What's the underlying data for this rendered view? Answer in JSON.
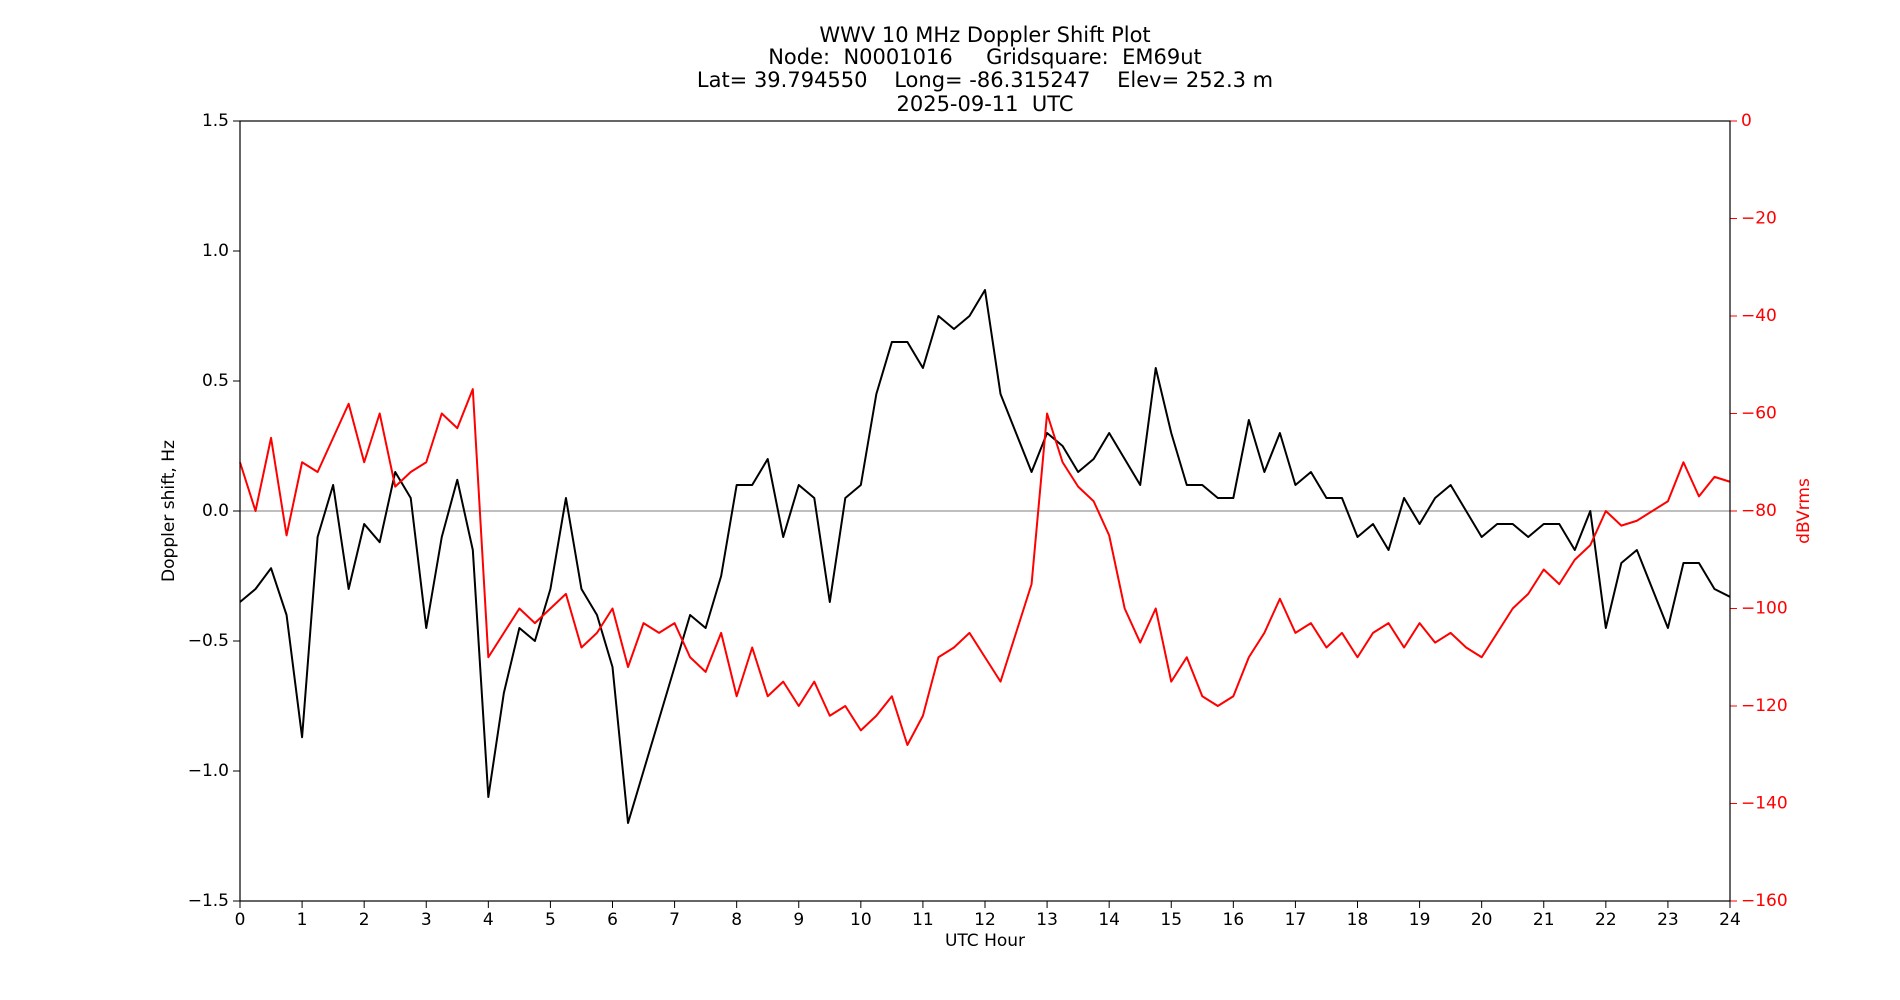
{
  "chart_data": {
    "type": "line",
    "title": [
      "WWV 10 MHz Doppler Shift Plot",
      "Node:  N0001016     Gridsquare:  EM69ut",
      "Lat= 39.794550    Long= -86.315247    Elev= 252.3 m",
      "2025-09-11  UTC"
    ],
    "xlabel": "UTC Hour",
    "ylabel": "Doppler shift, Hz",
    "y2label": "dBVrms",
    "x": [
      0,
      0.25,
      0.5,
      0.75,
      1,
      1.25,
      1.5,
      1.75,
      2,
      2.25,
      2.5,
      2.75,
      3,
      3.25,
      3.5,
      3.75,
      4,
      4.25,
      4.5,
      4.75,
      5,
      5.25,
      5.5,
      5.75,
      6,
      6.25,
      6.5,
      6.75,
      7,
      7.25,
      7.5,
      7.75,
      8,
      8.25,
      8.5,
      8.75,
      9,
      9.25,
      9.5,
      9.75,
      10,
      10.25,
      10.5,
      10.75,
      11,
      11.25,
      11.5,
      11.75,
      12,
      12.25,
      12.5,
      12.75,
      13,
      13.25,
      13.5,
      13.75,
      14,
      14.25,
      14.5,
      14.75,
      15,
      15.25,
      15.5,
      15.75,
      16,
      16.25,
      16.5,
      16.75,
      17,
      17.25,
      17.5,
      17.75,
      18,
      18.25,
      18.5,
      18.75,
      19,
      19.25,
      19.5,
      19.75,
      20,
      20.25,
      20.5,
      20.75,
      21,
      21.25,
      21.5,
      21.75,
      22,
      22.25,
      22.5,
      22.75,
      23,
      23.25,
      23.5,
      23.75,
      24
    ],
    "series": [
      {
        "color": "#000000",
        "values": [
          -0.35,
          -0.3,
          -0.22,
          -0.4,
          -0.87,
          -0.1,
          0.1,
          -0.3,
          -0.05,
          -0.12,
          0.15,
          0.05,
          -0.45,
          -0.1,
          0.12,
          -0.15,
          -1.1,
          -0.7,
          -0.45,
          -0.5,
          -0.3,
          0.05,
          -0.3,
          -0.4,
          -0.6,
          -1.2,
          -1.0,
          -0.8,
          -0.6,
          -0.4,
          -0.45,
          -0.25,
          0.1,
          0.1,
          0.2,
          -0.1,
          0.1,
          0.05,
          -0.35,
          0.05,
          0.1,
          0.45,
          0.65,
          0.65,
          0.55,
          0.75,
          0.7,
          0.75,
          0.85,
          0.45,
          0.3,
          0.15,
          0.3,
          0.25,
          0.15,
          0.2,
          0.3,
          0.2,
          0.1,
          0.55,
          0.3,
          0.1,
          0.1,
          0.05,
          0.05,
          0.35,
          0.15,
          0.3,
          0.1,
          0.15,
          0.05,
          0.05,
          -0.1,
          -0.05,
          -0.15,
          0.05,
          -0.05,
          0.05,
          0.1,
          0.0,
          -0.1,
          -0.05,
          -0.05,
          -0.1,
          -0.05,
          -0.05,
          -0.15,
          0.0,
          -0.45,
          -0.2,
          -0.15,
          -0.3,
          -0.45,
          -0.2,
          -0.2,
          -0.3,
          -0.33
        ]
      },
      {
        "color": "#ff0000",
        "axis": "y2",
        "values": [
          -70,
          -80,
          -65,
          -85,
          -70,
          -72,
          -65,
          -58,
          -70,
          -60,
          -75,
          -72,
          -70,
          -60,
          -63,
          -55,
          -110,
          -105,
          -100,
          -103,
          -100,
          -97,
          -108,
          -105,
          -100,
          -112,
          -103,
          -105,
          -103,
          -110,
          -113,
          -105,
          -118,
          -108,
          -118,
          -115,
          -120,
          -115,
          -122,
          -120,
          -125,
          -122,
          -118,
          -128,
          -122,
          -110,
          -108,
          -105,
          -110,
          -115,
          -105,
          -95,
          -60,
          -70,
          -75,
          -78,
          -85,
          -100,
          -107,
          -100,
          -115,
          -110,
          -118,
          -120,
          -118,
          -110,
          -105,
          -98,
          -105,
          -103,
          -108,
          -105,
          -110,
          -105,
          -103,
          -108,
          -103,
          -107,
          -105,
          -108,
          -110,
          -105,
          -100,
          -97,
          -92,
          -95,
          -90,
          -87,
          -80,
          -83,
          -82,
          -80,
          -78,
          -70,
          -77,
          -73,
          -74
        ]
      }
    ],
    "xlim": [
      0,
      24
    ],
    "xticks": [
      0,
      1,
      2,
      3,
      4,
      5,
      6,
      7,
      8,
      9,
      10,
      11,
      12,
      13,
      14,
      15,
      16,
      17,
      18,
      19,
      20,
      21,
      22,
      23,
      24
    ],
    "ylim": [
      -1.5,
      1.5
    ],
    "yticks": [
      {
        "value": -1.5,
        "label": "−1.5"
      },
      {
        "value": -1.0,
        "label": "−1.0"
      },
      {
        "value": -0.5,
        "label": "−0.5"
      },
      {
        "value": 0.0,
        "label": "0.0"
      },
      0.5,
      {
        "value": 1.0,
        "label": "1.0"
      },
      1.5
    ],
    "y2lim": [
      -160,
      0
    ],
    "y2ticks": [
      {
        "value": -160,
        "label": "−160"
      },
      {
        "value": -140,
        "label": "−140"
      },
      {
        "value": -120,
        "label": "−120"
      },
      {
        "value": -100,
        "label": "−100"
      },
      {
        "value": -80,
        "label": "−80"
      },
      {
        "value": -60,
        "label": "−60"
      },
      {
        "value": -40,
        "label": "−40"
      },
      {
        "value": -20,
        "label": "−20"
      },
      0
    ],
    "y2color": "#ff0000",
    "zero_line": true,
    "zero_line_color": "#999999"
  }
}
